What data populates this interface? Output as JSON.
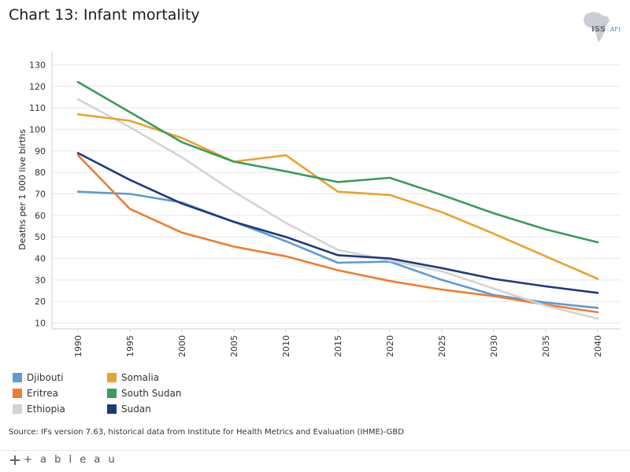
{
  "title": "Chart 13: Infant mortality",
  "logo": {
    "main": "ISS",
    "separator": "|",
    "sub": "AFI",
    "icon": "africa-map-icon"
  },
  "source": "Source: IFs version 7.63, historical data from Institute for Health Metrics and Evaluation (IHME)-GBD",
  "footer": {
    "brand": "+ a b l e a u",
    "icon": "tableau-plus-icon"
  },
  "chart_data": {
    "type": "line",
    "title": "Chart 13: Infant mortality",
    "xlabel": "",
    "ylabel": "Deaths per 1 000 live births",
    "x": [
      1990,
      1995,
      2000,
      2005,
      2010,
      2015,
      2020,
      2025,
      2030,
      2035,
      2040
    ],
    "x_tick_labels": [
      "1990",
      "1995",
      "2000",
      "2005",
      "2010",
      "2015",
      "2020",
      "2025",
      "2030",
      "2035",
      "2040"
    ],
    "y_ticks": [
      10,
      20,
      30,
      40,
      50,
      60,
      70,
      80,
      90,
      100,
      110,
      120,
      130
    ],
    "ylim": [
      8,
      136
    ],
    "grid": true,
    "legend_position": "bottom-left",
    "series": [
      {
        "name": "Djibouti",
        "color": "#5b9bd5",
        "values": [
          71,
          70,
          66,
          57,
          48,
          38,
          38.5,
          30,
          23,
          19.5,
          17
        ]
      },
      {
        "name": "Eritrea",
        "color": "#ed7d31",
        "values": [
          88,
          63,
          52,
          45.5,
          41,
          34.5,
          29.5,
          25.5,
          22.5,
          18.5,
          15
        ]
      },
      {
        "name": "Ethiopia",
        "color": "#d3d3d3",
        "values": [
          114,
          101,
          87,
          71,
          56.5,
          44,
          39,
          34,
          26,
          18,
          12
        ]
      },
      {
        "name": "Somalia",
        "color": "#e8a22f",
        "values": [
          107,
          104,
          96,
          85,
          88,
          71,
          69.5,
          61.5,
          51.5,
          41,
          30.5
        ]
      },
      {
        "name": "South Sudan",
        "color": "#3a9b5c",
        "values": [
          122,
          108,
          94,
          85,
          80.5,
          75.5,
          77.5,
          69.5,
          61,
          53.5,
          47.5
        ]
      },
      {
        "name": "Sudan",
        "color": "#1f3a7a",
        "values": [
          89,
          76.5,
          65.5,
          57,
          50,
          41.5,
          40,
          35.5,
          30.5,
          27,
          24
        ]
      }
    ]
  }
}
